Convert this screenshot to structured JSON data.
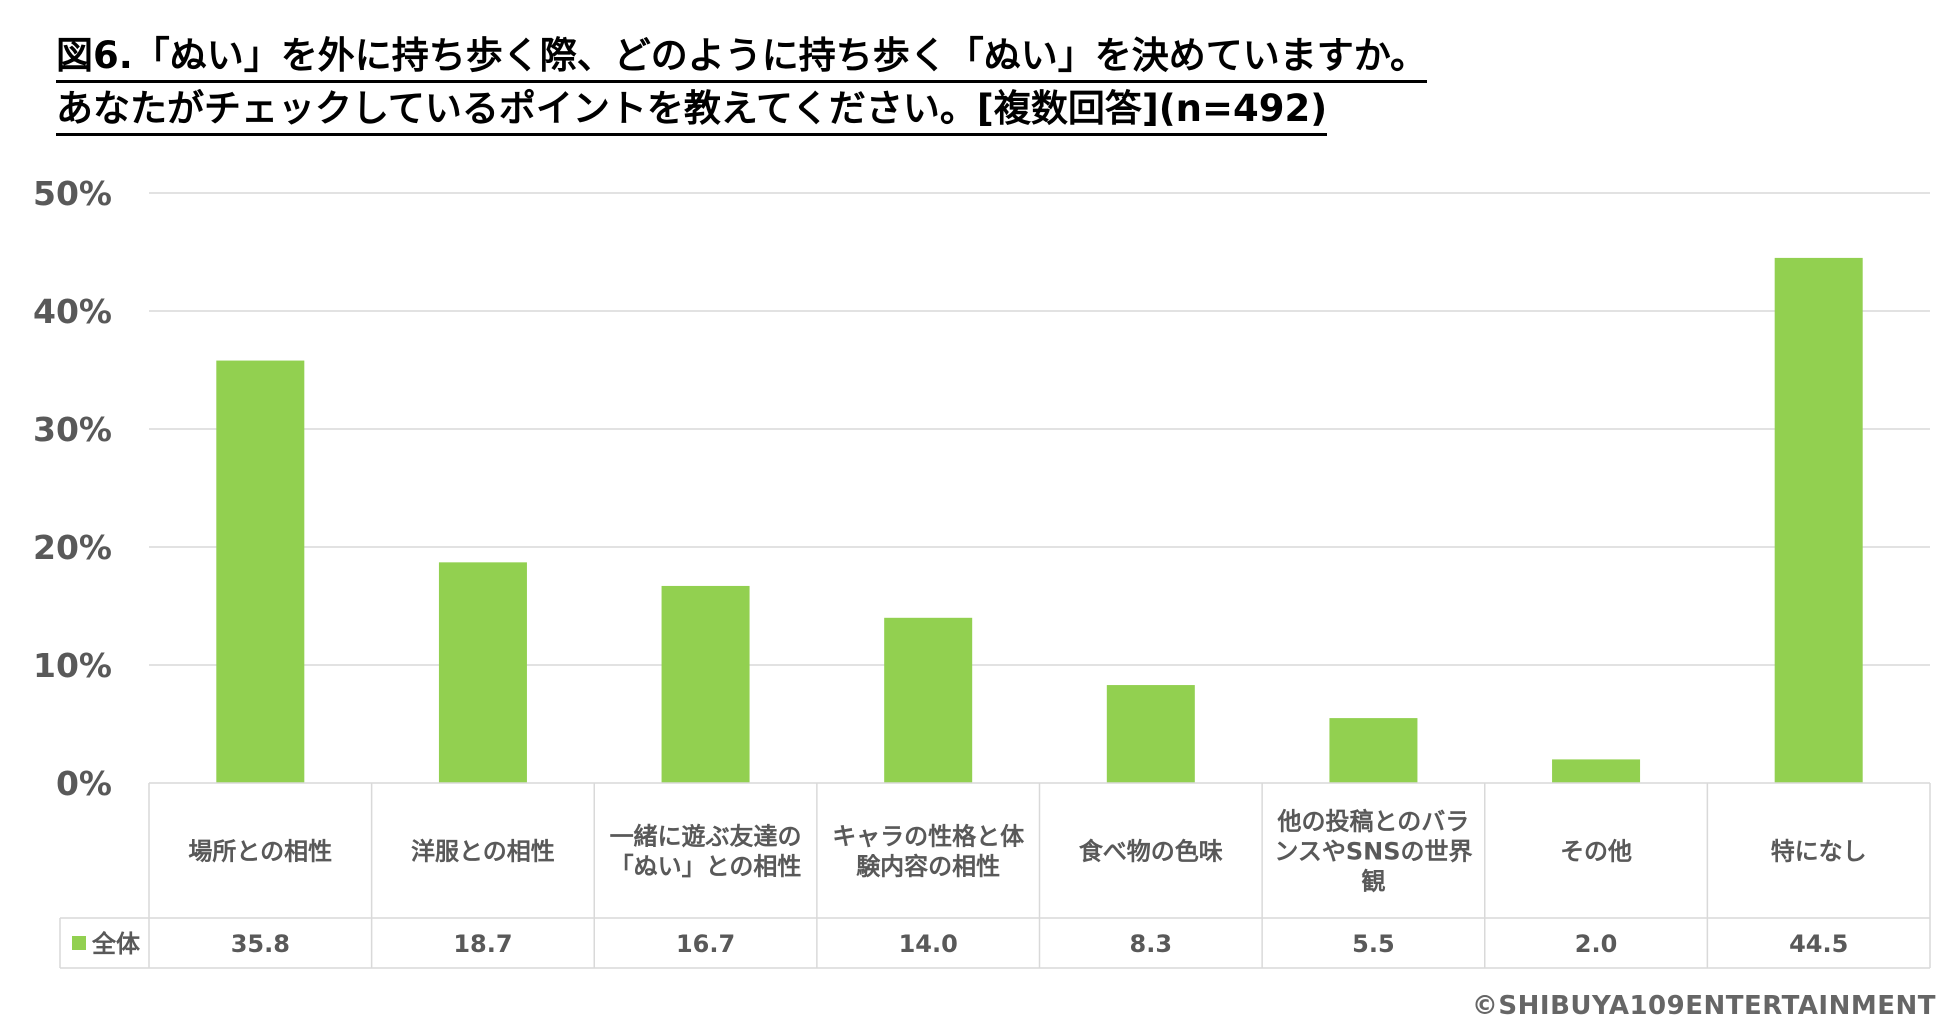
{
  "title": {
    "line1": "図6.「ぬい」を外に持ち歩く際、どのように持ち歩く「ぬい」を決めていますか。",
    "line2": "あなたがチェックしているポイントを教えてください。[複数回答](n=492)"
  },
  "footer": "©SHIBUYA109ENTERTAINMENT",
  "colors": {
    "bar": "#92d050",
    "grid": "#d9d9d9",
    "axis_text": "#595959"
  },
  "chart_data": {
    "type": "bar",
    "categories": [
      "場所との相性",
      "洋服との相性",
      "一緒に遊ぶ友達の「ぬい」との相性",
      "キャラの性格と体験内容の相性",
      "食べ物の色味",
      "他の投稿とのバランスやSNSの世界観",
      "その他",
      "特になし"
    ],
    "category_lines": [
      [
        "場所との相性"
      ],
      [
        "洋服との相性"
      ],
      [
        "一緒に遊ぶ友達の",
        "「ぬい」との相性"
      ],
      [
        "キャラの性格と体",
        "験内容の相性"
      ],
      [
        "食べ物の色味"
      ],
      [
        "他の投稿とのバラ",
        "ンスやSNSの世界",
        "観"
      ],
      [
        "その他"
      ],
      [
        "特になし"
      ]
    ],
    "series": [
      {
        "name": "全体",
        "values": [
          35.8,
          18.7,
          16.7,
          14.0,
          8.3,
          5.5,
          2.0,
          44.5
        ]
      }
    ],
    "value_labels": [
      "35.8",
      "18.7",
      "16.7",
      "14.0",
      "8.3",
      "5.5",
      "2.0",
      "44.5"
    ],
    "yticks": [
      "0%",
      "10%",
      "20%",
      "30%",
      "40%",
      "50%"
    ],
    "ylim": [
      0,
      50
    ],
    "grid": true,
    "legend": "data-table"
  }
}
